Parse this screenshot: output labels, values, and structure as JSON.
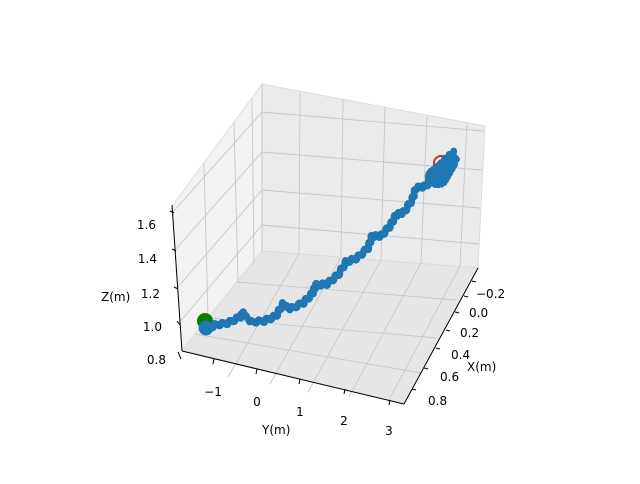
{
  "chart_data": {
    "type": "scatter",
    "projection": "3d",
    "title": "",
    "xlabel": "X(m)",
    "ylabel": "Y(m)",
    "zlabel": "Z(m)",
    "x_ticks": [
      "−0.2",
      "0.0",
      "0.2",
      "0.4",
      "0.6",
      "0.8"
    ],
    "y_ticks": [
      "−1",
      "0",
      "1",
      "2",
      "3"
    ],
    "z_ticks": [
      "0.8",
      "1.0",
      "1.2",
      "1.4",
      "1.6"
    ],
    "xlim": [
      -0.28,
      0.88
    ],
    "ylim": [
      -1.7,
      3.4
    ],
    "zlim": [
      0.8,
      1.68
    ],
    "grid": true,
    "trajectory_color": "#1f77b4",
    "start_marker": {
      "color": "#008000",
      "x": 0.85,
      "y": -1.55,
      "z": 1.0
    },
    "end_marker": {
      "color": "#d62728",
      "x": -0.2,
      "y": 3.2,
      "z": 1.6
    },
    "trajectory": [
      {
        "x": 0.85,
        "y": -1.55,
        "z": 0.97
      },
      {
        "x": 0.82,
        "y": -1.3,
        "z": 0.99
      },
      {
        "x": 0.78,
        "y": -1.0,
        "z": 1.02
      },
      {
        "x": 0.72,
        "y": -0.6,
        "z": 1.05
      },
      {
        "x": 0.68,
        "y": -0.3,
        "z": 1.07
      },
      {
        "x": 0.63,
        "y": 0.1,
        "z": 1.12
      },
      {
        "x": 0.55,
        "y": 0.5,
        "z": 1.16
      },
      {
        "x": 0.47,
        "y": 0.9,
        "z": 1.22
      },
      {
        "x": 0.4,
        "y": 1.2,
        "z": 1.28
      },
      {
        "x": 0.3,
        "y": 1.5,
        "z": 1.35
      },
      {
        "x": 0.2,
        "y": 1.75,
        "z": 1.4
      },
      {
        "x": 0.12,
        "y": 2.0,
        "z": 1.45
      },
      {
        "x": 0.03,
        "y": 2.25,
        "z": 1.5
      },
      {
        "x": -0.05,
        "y": 2.55,
        "z": 1.54
      },
      {
        "x": -0.12,
        "y": 2.8,
        "z": 1.57
      },
      {
        "x": -0.18,
        "y": 3.05,
        "z": 1.6
      },
      {
        "x": -0.22,
        "y": 3.25,
        "z": 1.62
      }
    ]
  }
}
